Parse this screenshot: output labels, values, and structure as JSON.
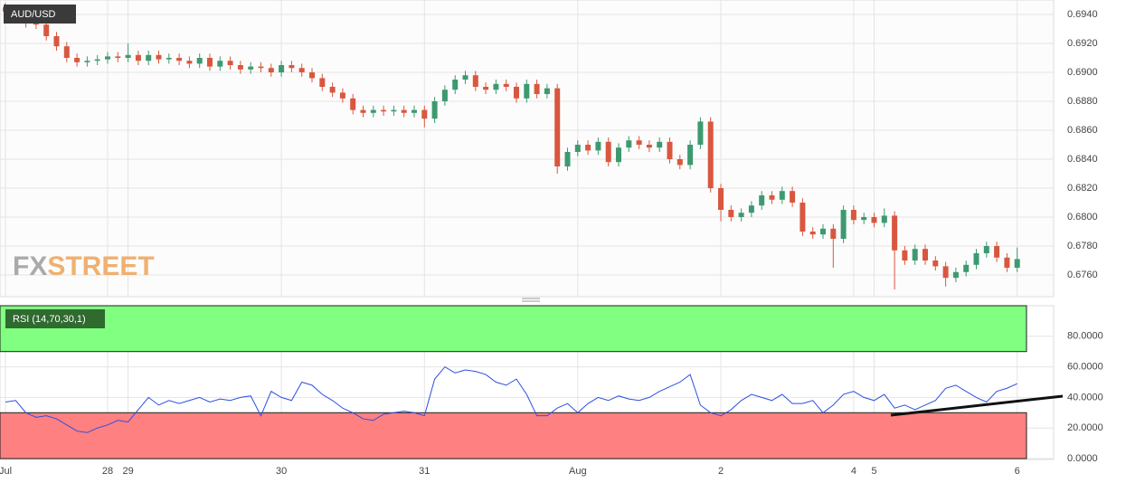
{
  "chart_data": [
    {
      "type": "candlestick",
      "title": "AUD/USD",
      "categories": [
        "Jul",
        null,
        null,
        null,
        null,
        null,
        null,
        null,
        null,
        null,
        "28",
        null,
        "29",
        null,
        null,
        null,
        null,
        null,
        null,
        null,
        null,
        null,
        null,
        null,
        null,
        null,
        null,
        "30",
        null,
        null,
        null,
        null,
        null,
        null,
        null,
        null,
        null,
        null,
        null,
        null,
        null,
        "31",
        null,
        null,
        null,
        null,
        null,
        null,
        null,
        null,
        null,
        null,
        null,
        null,
        null,
        null,
        "Aug",
        null,
        null,
        null,
        null,
        null,
        null,
        null,
        null,
        null,
        null,
        null,
        null,
        null,
        "2",
        null,
        null,
        null,
        null,
        null,
        null,
        null,
        null,
        null,
        null,
        null,
        null,
        "4",
        null,
        "5",
        null,
        null,
        null,
        null,
        null,
        null,
        null,
        null,
        null,
        null,
        null,
        null,
        null,
        "6"
      ],
      "open": [
        0.6945,
        0.6942,
        0.6937,
        0.6934,
        0.6933,
        0.6925,
        0.6918,
        0.691,
        0.6907,
        0.6908,
        0.6909,
        0.6911,
        0.691,
        0.6912,
        0.6908,
        0.6912,
        0.6909,
        0.691,
        0.6908,
        0.6906,
        0.691,
        0.6904,
        0.6908,
        0.6905,
        0.6902,
        0.6904,
        0.6903,
        0.69,
        0.6905,
        0.6903,
        0.69,
        0.6896,
        0.689,
        0.6886,
        0.6882,
        0.6874,
        0.6872,
        0.6874,
        0.6873,
        0.6874,
        0.6872,
        0.6874,
        0.6868,
        0.688,
        0.6888,
        0.6895,
        0.6898,
        0.689,
        0.6888,
        0.6892,
        0.689,
        0.6882,
        0.6892,
        0.6885,
        0.6889,
        0.6835,
        0.6845,
        0.685,
        0.6846,
        0.6852,
        0.6838,
        0.6848,
        0.6853,
        0.685,
        0.6848,
        0.6852,
        0.684,
        0.6836,
        0.685,
        0.6866,
        0.682,
        0.6805,
        0.68,
        0.6803,
        0.6808,
        0.6815,
        0.6812,
        0.6818,
        0.681,
        0.679,
        0.6788,
        0.6792,
        0.6785,
        0.6805,
        0.6798,
        0.68,
        0.6796,
        0.6801,
        0.6777,
        0.677,
        0.6778,
        0.677,
        0.6766,
        0.6758,
        0.6762,
        0.6767,
        0.6775,
        0.678,
        0.6772,
        0.6765
      ],
      "high": [
        0.6948,
        0.6945,
        0.694,
        0.6937,
        0.6936,
        0.6928,
        0.6921,
        0.6913,
        0.6911,
        0.6912,
        0.6914,
        0.6914,
        0.692,
        0.6915,
        0.6915,
        0.6915,
        0.6913,
        0.6913,
        0.6911,
        0.6913,
        0.6913,
        0.6911,
        0.6911,
        0.6908,
        0.6907,
        0.6907,
        0.6906,
        0.6908,
        0.6908,
        0.6906,
        0.6903,
        0.6899,
        0.6893,
        0.6889,
        0.6885,
        0.6877,
        0.6877,
        0.6877,
        0.6877,
        0.6877,
        0.6877,
        0.6877,
        0.6883,
        0.6891,
        0.6898,
        0.6901,
        0.6901,
        0.6893,
        0.6895,
        0.6895,
        0.6893,
        0.6895,
        0.6895,
        0.6892,
        0.6892,
        0.6848,
        0.6853,
        0.6853,
        0.6855,
        0.6855,
        0.6851,
        0.6856,
        0.6856,
        0.6853,
        0.6855,
        0.6855,
        0.6843,
        0.6853,
        0.6869,
        0.6869,
        0.6823,
        0.6808,
        0.6806,
        0.6811,
        0.6818,
        0.6818,
        0.6821,
        0.6821,
        0.6813,
        0.6793,
        0.6795,
        0.6795,
        0.6808,
        0.6808,
        0.6803,
        0.6803,
        0.6806,
        0.6804,
        0.678,
        0.6781,
        0.6781,
        0.6773,
        0.6769,
        0.6765,
        0.677,
        0.6778,
        0.6783,
        0.6783,
        0.6775,
        0.6779
      ],
      "low": [
        0.6939,
        0.6934,
        0.6931,
        0.693,
        0.6922,
        0.6915,
        0.6907,
        0.6904,
        0.6904,
        0.6905,
        0.6906,
        0.6907,
        0.6907,
        0.6905,
        0.6905,
        0.6906,
        0.6906,
        0.6905,
        0.6903,
        0.6903,
        0.6901,
        0.6901,
        0.6902,
        0.6899,
        0.6899,
        0.69,
        0.6897,
        0.6897,
        0.69,
        0.6897,
        0.6893,
        0.6887,
        0.6883,
        0.6879,
        0.6871,
        0.6869,
        0.6869,
        0.687,
        0.687,
        0.6869,
        0.6869,
        0.6862,
        0.6865,
        0.6877,
        0.6885,
        0.6892,
        0.6887,
        0.6885,
        0.6885,
        0.6887,
        0.6879,
        0.6879,
        0.6882,
        0.6882,
        0.683,
        0.6832,
        0.6842,
        0.6843,
        0.6843,
        0.6835,
        0.6835,
        0.6845,
        0.6847,
        0.6845,
        0.6845,
        0.6837,
        0.6833,
        0.6833,
        0.6847,
        0.6817,
        0.6797,
        0.6797,
        0.6797,
        0.68,
        0.6805,
        0.6809,
        0.6809,
        0.6807,
        0.6787,
        0.6785,
        0.6785,
        0.6765,
        0.6782,
        0.6795,
        0.6795,
        0.6793,
        0.6793,
        0.675,
        0.6767,
        0.6767,
        0.6767,
        0.6763,
        0.6752,
        0.6755,
        0.6759,
        0.6764,
        0.6772,
        0.6769,
        0.6762,
        0.6762
      ],
      "close": [
        0.6942,
        0.6937,
        0.6934,
        0.6933,
        0.6925,
        0.6918,
        0.691,
        0.6907,
        0.6908,
        0.6909,
        0.6911,
        0.691,
        0.6912,
        0.6908,
        0.6912,
        0.6909,
        0.691,
        0.6908,
        0.6906,
        0.691,
        0.6904,
        0.6908,
        0.6905,
        0.6902,
        0.6904,
        0.6903,
        0.69,
        0.6905,
        0.6903,
        0.69,
        0.6896,
        0.689,
        0.6886,
        0.6882,
        0.6874,
        0.6872,
        0.6874,
        0.6873,
        0.6874,
        0.6872,
        0.6874,
        0.6868,
        0.688,
        0.6888,
        0.6895,
        0.6898,
        0.689,
        0.6888,
        0.6892,
        0.689,
        0.6882,
        0.6892,
        0.6885,
        0.6889,
        0.6835,
        0.6845,
        0.685,
        0.6846,
        0.6852,
        0.6838,
        0.6848,
        0.6853,
        0.685,
        0.6848,
        0.6852,
        0.684,
        0.6836,
        0.685,
        0.6866,
        0.682,
        0.6805,
        0.68,
        0.6803,
        0.6808,
        0.6815,
        0.6812,
        0.6818,
        0.681,
        0.679,
        0.6788,
        0.6792,
        0.6785,
        0.6805,
        0.6798,
        0.68,
        0.6796,
        0.6801,
        0.6777,
        0.677,
        0.6778,
        0.677,
        0.6766,
        0.6758,
        0.6762,
        0.6767,
        0.6775,
        0.678,
        0.6772,
        0.6765,
        0.6771
      ],
      "up_color": "#3d9a70",
      "down_color": "#d9573f",
      "ylim": [
        0.6745,
        0.695
      ],
      "yticks": [
        {
          "value": 0.676,
          "label": "0.6760"
        },
        {
          "value": 0.678,
          "label": "0.6780"
        },
        {
          "value": 0.68,
          "label": "0.6800"
        },
        {
          "value": 0.682,
          "label": "0.6820"
        },
        {
          "value": 0.684,
          "label": "0.6840"
        },
        {
          "value": 0.686,
          "label": "0.6860"
        },
        {
          "value": 0.688,
          "label": "0.6880"
        },
        {
          "value": 0.69,
          "label": "0.6900"
        },
        {
          "value": 0.692,
          "label": "0.6920"
        },
        {
          "value": 0.694,
          "label": "0.6940"
        }
      ],
      "grid": true
    },
    {
      "type": "line",
      "title": "RSI (14,70,30,1)",
      "values": [
        37,
        38,
        30,
        27,
        28,
        26,
        22,
        18,
        17,
        20,
        22,
        25,
        24,
        32,
        40,
        35,
        38,
        36,
        38,
        40,
        37,
        39,
        38,
        40,
        41,
        28,
        44,
        40,
        38,
        50,
        48,
        42,
        38,
        33,
        30,
        26,
        25,
        29,
        30,
        31,
        30,
        28,
        52,
        60,
        56,
        58,
        57,
        55,
        50,
        48,
        52,
        42,
        28,
        28,
        33,
        36,
        30,
        36,
        40,
        38,
        41,
        39,
        38,
        40,
        44,
        47,
        50,
        55,
        35,
        30,
        28,
        32,
        38,
        42,
        40,
        38,
        42,
        36,
        36,
        38,
        30,
        35,
        42,
        44,
        40,
        38,
        42,
        33,
        35,
        32,
        35,
        38,
        46,
        48,
        44,
        40,
        37,
        44,
        46,
        49
      ],
      "color": "#2c4fe0",
      "bands": [
        {
          "from": 70,
          "to": 100,
          "color": "#80ff80"
        },
        {
          "from": 0,
          "to": 30,
          "color": "#ff8080"
        }
      ],
      "ylim": [
        0,
        100
      ],
      "yticks": [
        {
          "value": 0,
          "label": "0.0000"
        },
        {
          "value": 20,
          "label": "20.0000"
        },
        {
          "value": 40,
          "label": "40.0000"
        },
        {
          "value": 60,
          "label": "60.0000"
        },
        {
          "value": 80,
          "label": "80.0000"
        }
      ],
      "grid": true
    }
  ],
  "watermark": {
    "prefix": "FX",
    "suffix": "STREET"
  }
}
